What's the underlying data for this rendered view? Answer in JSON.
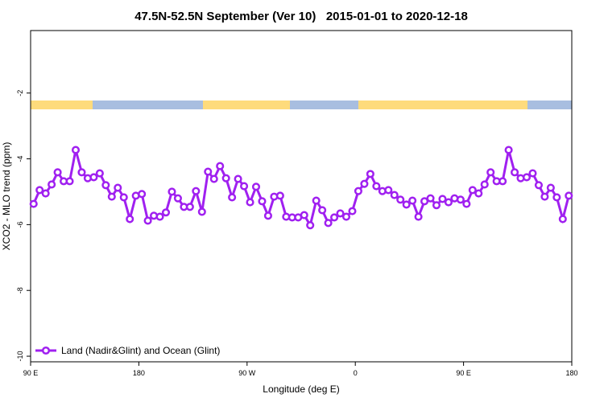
{
  "chart_data": {
    "type": "line",
    "title": "47.5N-52.5N September (Ver 10)   2015-01-01 to 2020-12-18",
    "xlabel": "Longitude (deg E)",
    "ylabel": "XCO2 - MLO trend (ppm)",
    "x": [
      92.5,
      97.5,
      102.5,
      107.5,
      112.5,
      117.5,
      122.5,
      127.5,
      132.5,
      137.5,
      142.5,
      147.5,
      152.5,
      157.5,
      162.5,
      167.5,
      172.5,
      177.5,
      182.5,
      187.5,
      192.5,
      197.5,
      202.5,
      207.5,
      212.5,
      217.5,
      222.5,
      227.5,
      232.5,
      237.5,
      242.5,
      247.5,
      252.5,
      257.5,
      262.5,
      267.5,
      272.5,
      277.5,
      282.5,
      287.5,
      292.5,
      297.5,
      302.5,
      307.5,
      312.5,
      317.5,
      322.5,
      327.5,
      332.5,
      337.5,
      342.5,
      347.5,
      352.5,
      357.5,
      362.5,
      367.5,
      372.5,
      377.5,
      382.5,
      387.5,
      392.5,
      397.5,
      402.5,
      407.5,
      412.5,
      417.5,
      422.5,
      427.5,
      432.5,
      437.5,
      442.5,
      447.5,
      452.5,
      457.5,
      462.5,
      467.5,
      472.5,
      477.5,
      482.5,
      487.5,
      492.5,
      497.5,
      502.5,
      507.5,
      512.5,
      517.5,
      522.5,
      527.5,
      532.5,
      537.5
    ],
    "series": [
      {
        "name": "Land (Nadir&Glint) and Ocean (Glint)",
        "color": "#a020f0",
        "values": [
          -5.37,
          -4.95,
          -5.05,
          -4.78,
          -4.41,
          -4.68,
          -4.68,
          -3.73,
          -4.41,
          -4.59,
          -4.56,
          -4.44,
          -4.8,
          -5.15,
          -4.88,
          -5.17,
          -5.83,
          -5.12,
          -5.07,
          -5.88,
          -5.73,
          -5.76,
          -5.63,
          -5.0,
          -5.2,
          -5.46,
          -5.46,
          -4.98,
          -5.61,
          -4.39,
          -4.61,
          -4.22,
          -4.59,
          -5.17,
          -4.61,
          -4.83,
          -5.32,
          -4.85,
          -5.29,
          -5.73,
          -5.15,
          -5.12,
          -5.76,
          -5.78,
          -5.78,
          -5.71,
          -6.02,
          -5.27,
          -5.56,
          -5.95,
          -5.78,
          -5.66,
          -5.76,
          -5.59,
          -4.98,
          -4.76,
          -4.46,
          -4.83,
          -4.98,
          -4.95,
          -5.1,
          -5.24,
          -5.39,
          -5.27,
          -5.76,
          -5.29,
          -5.2,
          -5.41,
          -5.22,
          -5.32,
          -5.2,
          -5.24,
          -5.37,
          -4.95,
          -5.05,
          -4.78,
          -4.41,
          -4.68,
          -4.68,
          -3.73,
          -4.41,
          -4.59,
          -4.56,
          -4.44,
          -4.8,
          -5.15,
          -4.88,
          -5.17,
          -5.83,
          -5.12
        ]
      }
    ],
    "xlim": [
      90,
      540
    ],
    "xticks": [
      {
        "value": 90,
        "label": "90 E"
      },
      {
        "value": 180,
        "label": "180"
      },
      {
        "value": 270,
        "label": "90 W"
      },
      {
        "value": 360,
        "label": "0"
      },
      {
        "value": 450,
        "label": "90 E"
      },
      {
        "value": 540,
        "label": "180"
      }
    ],
    "ylim": [
      -10.17,
      -0.1
    ],
    "yticks": [
      -2,
      -4,
      -6,
      -8,
      -10
    ],
    "legend": "lower left"
  }
}
